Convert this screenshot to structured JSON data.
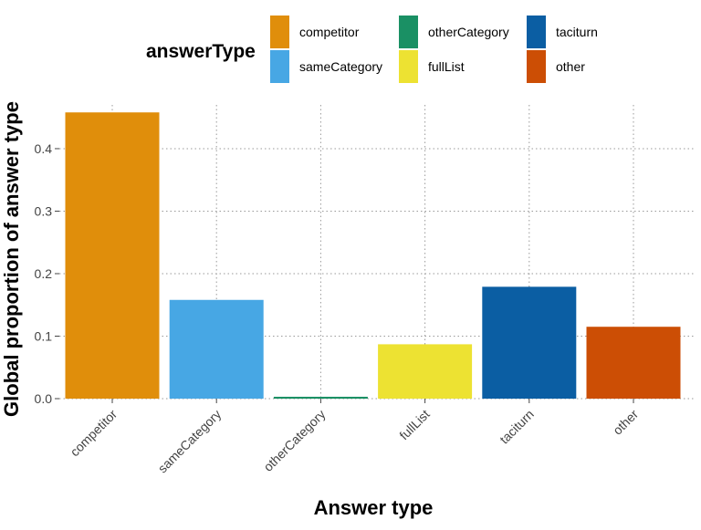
{
  "chart_data": {
    "type": "bar",
    "xlabel": "Answer type",
    "ylabel": "Global proportion of answer type",
    "categories": [
      "competitor",
      "sameCategory",
      "otherCategory",
      "fullList",
      "taciturn",
      "other"
    ],
    "values": [
      0.458,
      0.158,
      0.003,
      0.087,
      0.179,
      0.115
    ],
    "ylim": [
      0,
      0.47
    ],
    "yticks": [
      0.0,
      0.1,
      0.2,
      0.3,
      0.4
    ],
    "ytick_labels": [
      "0.0",
      "0.1",
      "0.2",
      "0.3",
      "0.4"
    ],
    "grid": "dotted",
    "legend": {
      "title": "answerType",
      "position": "top",
      "entries": [
        {
          "label": "competitor",
          "color": "#E08E0B"
        },
        {
          "label": "otherCategory",
          "color": "#1A9064"
        },
        {
          "label": "taciturn",
          "color": "#0B5EA3"
        },
        {
          "label": "sameCategory",
          "color": "#47A7E4"
        },
        {
          "label": "fullList",
          "color": "#EDE232"
        },
        {
          "label": "other",
          "color": "#CC4E05"
        }
      ]
    },
    "colors": [
      "#E08E0B",
      "#47A7E4",
      "#1A9064",
      "#EDE232",
      "#0B5EA3",
      "#CC4E05"
    ]
  }
}
